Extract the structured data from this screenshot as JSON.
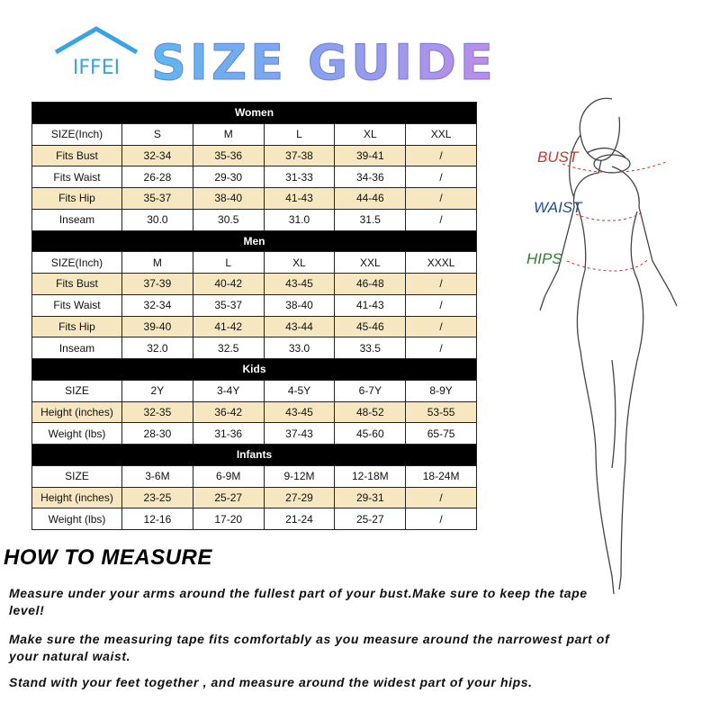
{
  "header": {
    "brand": "IFFEI",
    "title": "SIZE GUIDE"
  },
  "sections": [
    {
      "title": "Women",
      "rows": [
        [
          "SIZE(Inch)",
          "S",
          "M",
          "L",
          "XL",
          "XXL"
        ],
        [
          "Fits Bust",
          "32-34",
          "35-36",
          "37-38",
          "39-41",
          "/"
        ],
        [
          "Fits Waist",
          "26-28",
          "29-30",
          "31-33",
          "34-36",
          "/"
        ],
        [
          "Fits Hip",
          "35-37",
          "38-40",
          "41-43",
          "44-46",
          "/"
        ],
        [
          "Inseam",
          "30.0",
          "30.5",
          "31.0",
          "31.5",
          "/"
        ]
      ]
    },
    {
      "title": "Men",
      "rows": [
        [
          "SIZE(Inch)",
          "M",
          "L",
          "XL",
          "XXL",
          "XXXL"
        ],
        [
          "Fits Bust",
          "37-39",
          "40-42",
          "43-45",
          "46-48",
          "/"
        ],
        [
          "Fits Waist",
          "32-34",
          "35-37",
          "38-40",
          "41-43",
          "/"
        ],
        [
          "Fits Hip",
          "39-40",
          "41-42",
          "43-44",
          "45-46",
          "/"
        ],
        [
          "Inseam",
          "32.0",
          "32.5",
          "33.0",
          "33.5",
          "/"
        ]
      ]
    },
    {
      "title": "Kids",
      "rows": [
        [
          "SIZE",
          "2Y",
          "3-4Y",
          "4-5Y",
          "6-7Y",
          "8-9Y"
        ],
        [
          "Height (inches)",
          "32-35",
          "36-42",
          "43-45",
          "48-52",
          "53-55"
        ],
        [
          "Weight (lbs)",
          "28-30",
          "31-36",
          "37-43",
          "45-60",
          "65-75"
        ]
      ]
    },
    {
      "title": "Infants",
      "rows": [
        [
          "SIZE",
          "3-6M",
          "6-9M",
          "9-12M",
          "12-18M",
          "18-24M"
        ],
        [
          "Height (inches)",
          "23-25",
          "25-27",
          "27-29",
          "29-31",
          "/"
        ],
        [
          "Weight (lbs)",
          "12-16",
          "17-20",
          "21-24",
          "25-27",
          "/"
        ]
      ]
    }
  ],
  "figure": {
    "labels": [
      "BUST",
      "WAIST",
      "HIPS"
    ]
  },
  "how_to_measure": {
    "title": "HOW TO MEASURE",
    "paragraphs": [
      "Measure under your arms around the fullest part of your bust.Make sure to keep the tape level!",
      "Make sure the measuring tape fits comfortably as you measure around the narrowest part of your natural waist.",
      "Stand with your feet together , and measure around the widest part of your hips."
    ]
  }
}
